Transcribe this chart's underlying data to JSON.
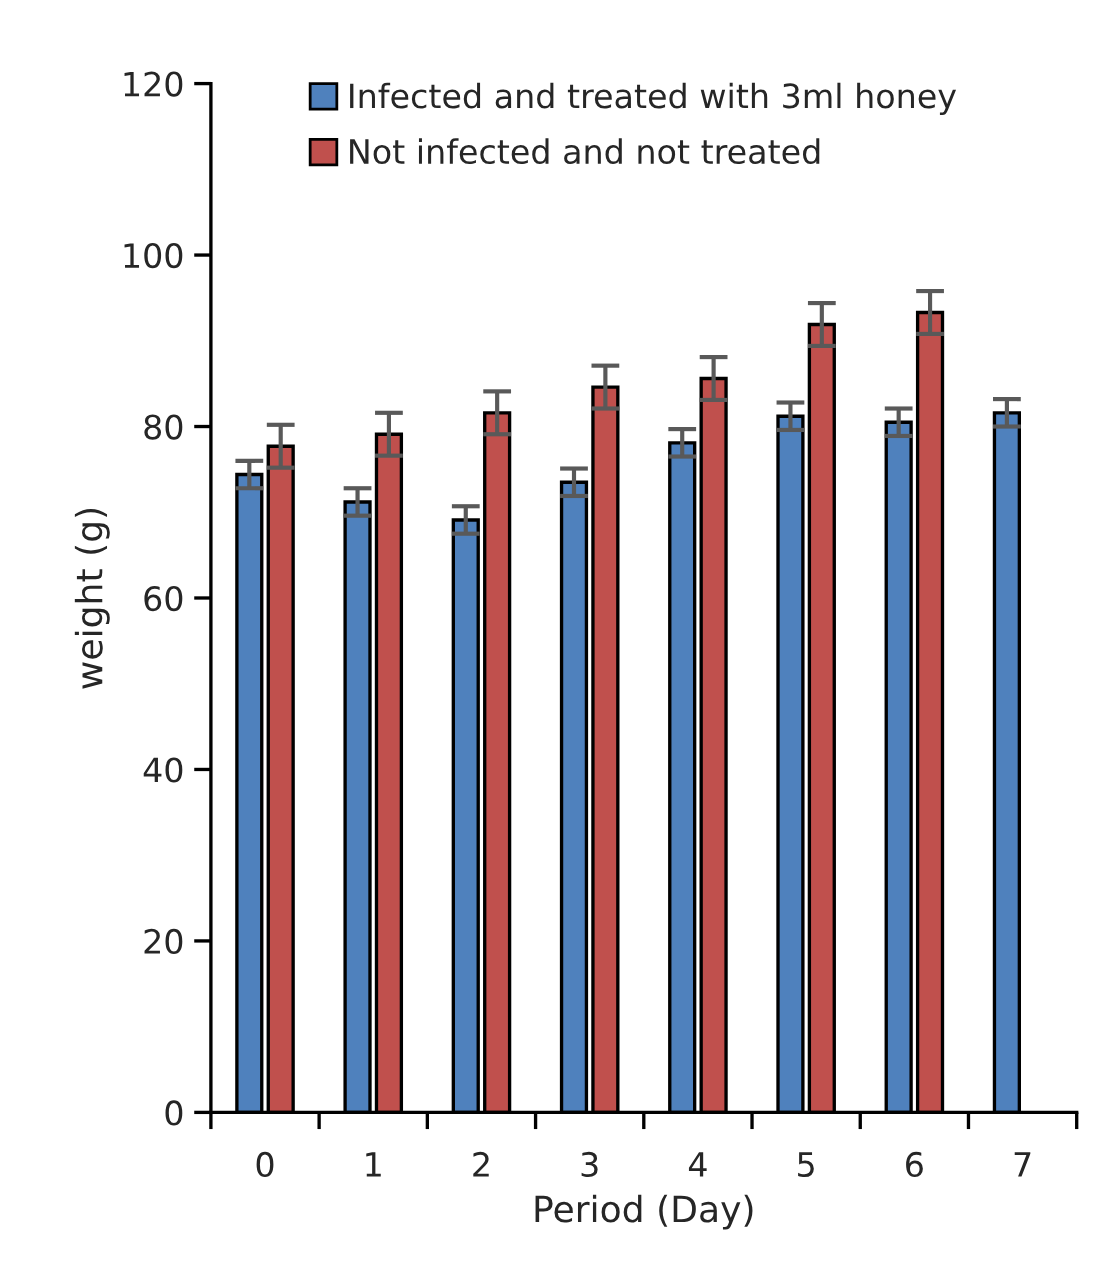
{
  "chart_data": {
    "type": "bar",
    "xlabel": "Period (Day)",
    "ylabel": "weight (g)",
    "categories": [
      "0",
      "1",
      "2",
      "3",
      "4",
      "5",
      "6",
      "7"
    ],
    "series": [
      {
        "name": "Infected and treated with 3ml honey",
        "color": "#4f81bd",
        "values": [
          74.4,
          71.2,
          69.1,
          73.5,
          78.1,
          81.2,
          80.5,
          81.6
        ],
        "errors": [
          1.6,
          1.6,
          1.6,
          1.6,
          1.6,
          1.6,
          1.6,
          1.6
        ]
      },
      {
        "name": "Not infected and not treated",
        "color": "#c0504d",
        "values": [
          77.7,
          79.1,
          81.6,
          84.6,
          85.6,
          91.9,
          93.3,
          null
        ],
        "errors": [
          2.5,
          2.5,
          2.5,
          2.5,
          2.5,
          2.5,
          2.5,
          null
        ]
      }
    ],
    "ylim": [
      0,
      120
    ],
    "yticks": [
      0,
      20,
      40,
      60,
      80,
      100,
      120
    ],
    "grid": false,
    "legend": "top left"
  }
}
